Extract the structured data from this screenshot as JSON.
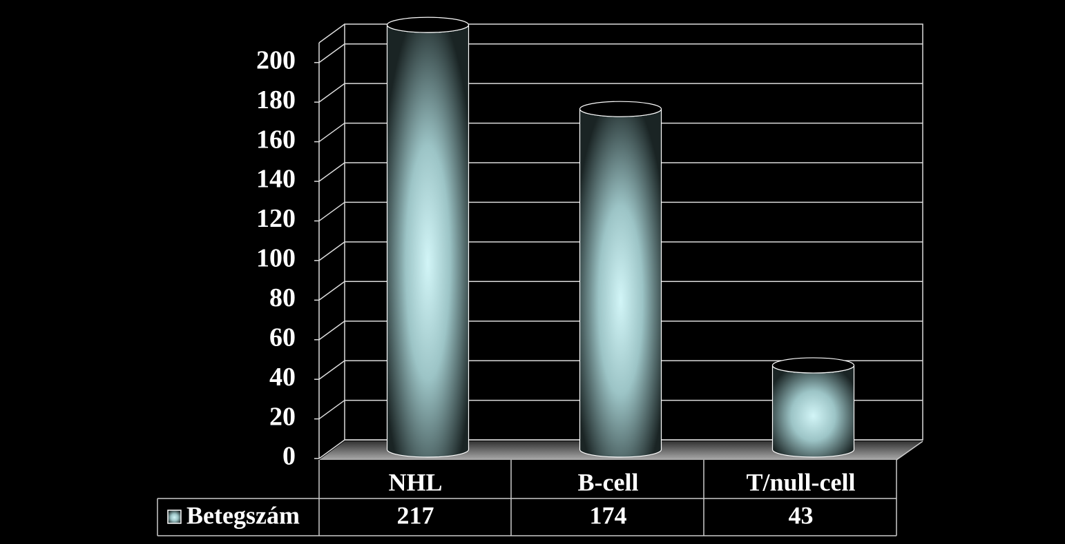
{
  "chart_data": {
    "type": "bar",
    "categories": [
      "NHL",
      "B-cell",
      "T/null-cell"
    ],
    "series": [
      {
        "name": "Betegszám",
        "color": "#c8eef0",
        "values": [
          217,
          174,
          43
        ]
      }
    ],
    "ylim": [
      0,
      210
    ],
    "yticks": [
      0,
      20,
      40,
      60,
      80,
      100,
      120,
      140,
      160,
      180,
      200
    ],
    "grid": true
  }
}
